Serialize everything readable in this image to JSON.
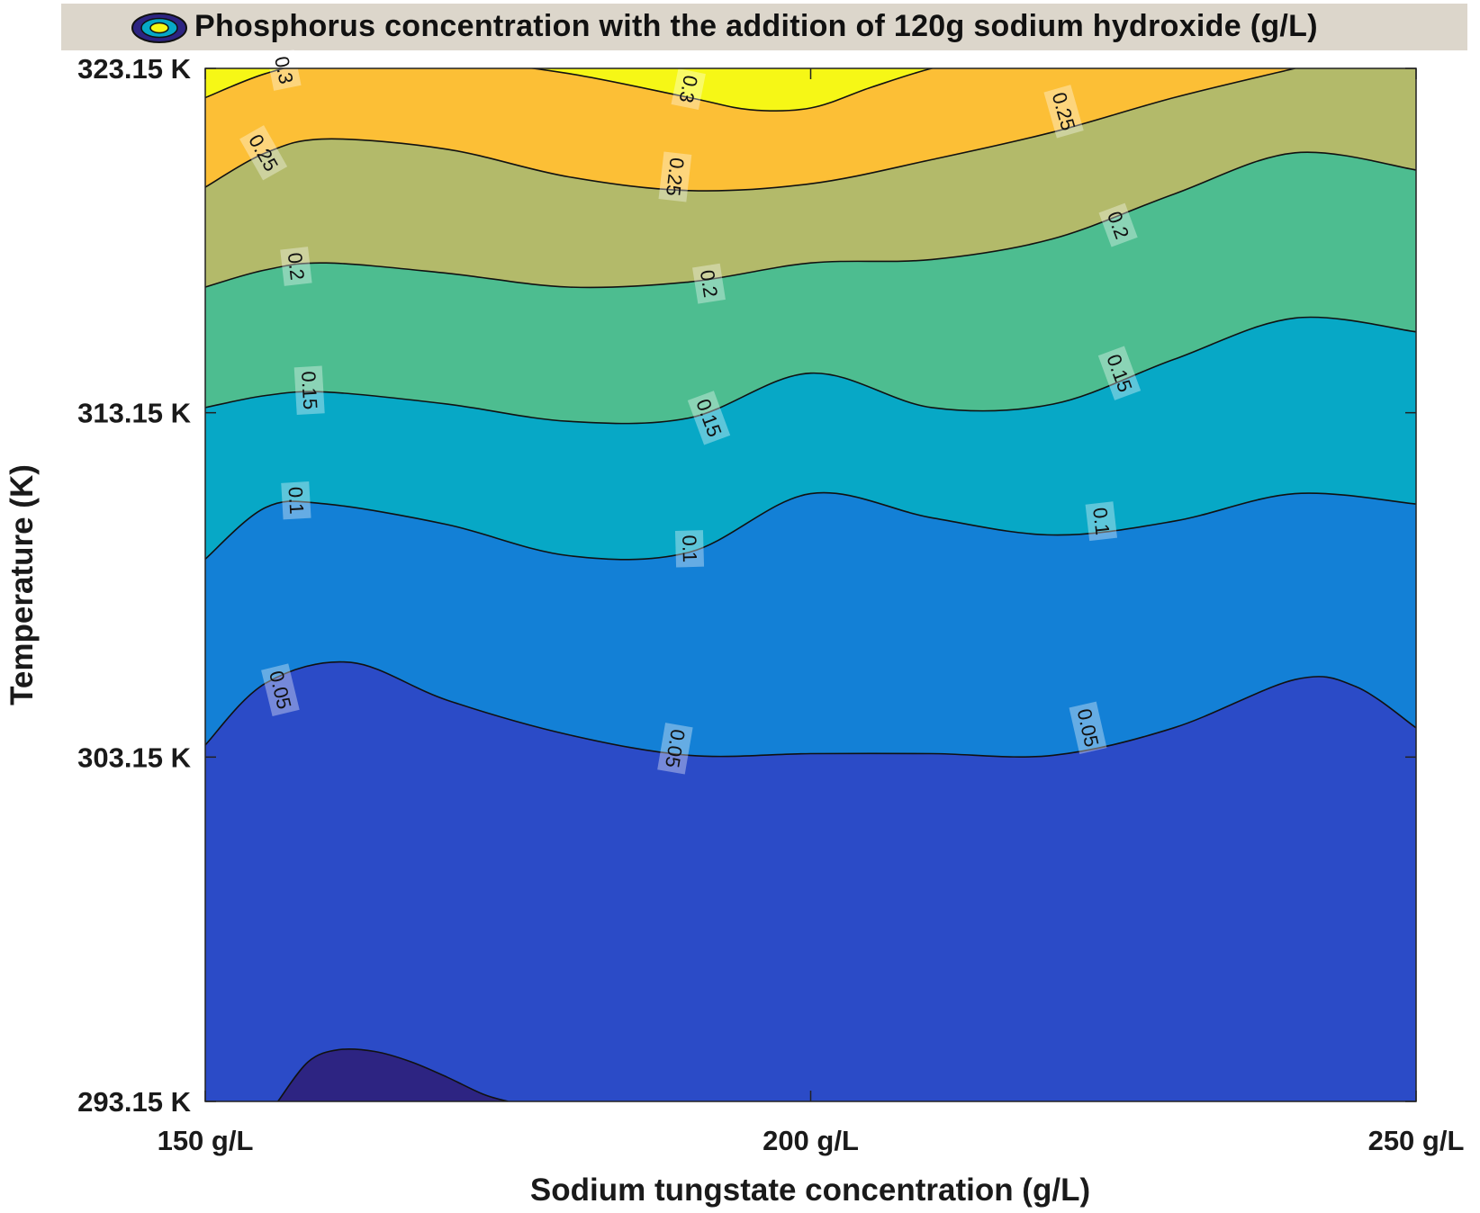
{
  "chart_data": {
    "type": "contour",
    "title": "Phosphorus concentration with the addition of 120g sodium hydroxide (g/L)",
    "xlabel": "Sodium tungstate concentration (g/L)",
    "ylabel": "Temperature (K)",
    "xlim": [
      150,
      250
    ],
    "ylim": [
      293.15,
      323.15
    ],
    "x_ticks": [
      {
        "value": 150,
        "label": "150 g/L"
      },
      {
        "value": 200,
        "label": "200 g/L"
      },
      {
        "value": 250,
        "label": "250 g/L"
      }
    ],
    "y_ticks": [
      {
        "value": 293.15,
        "label": "293.15 K"
      },
      {
        "value": 303.15,
        "label": "303.15 K"
      },
      {
        "value": 313.15,
        "label": "313.15 K"
      },
      {
        "value": 323.15,
        "label": "323.15 K"
      }
    ],
    "band_colors": [
      "#2d2482",
      "#2b4bc7",
      "#1380d6",
      "#07a8c6",
      "#4dbd90",
      "#b3ba6a",
      "#fcbf36",
      "#f6f716"
    ],
    "level_label_color": "#111111",
    "levels": [
      {
        "value": 0.05,
        "points": [
          [
            150,
            303.5
          ],
          [
            155,
            305.3
          ],
          [
            162,
            305.9
          ],
          [
            170,
            304.8
          ],
          [
            180,
            303.8
          ],
          [
            190,
            303.2
          ],
          [
            200,
            303.25
          ],
          [
            210,
            303.25
          ],
          [
            220,
            303.2
          ],
          [
            230,
            304.0
          ],
          [
            240,
            305.4
          ],
          [
            245,
            305.2
          ],
          [
            250,
            304.0
          ]
        ],
        "labels": [
          {
            "x": 156.2,
            "y": 305.1,
            "text": "0.05"
          },
          {
            "x": 188.8,
            "y": 303.4,
            "text": "0.05"
          },
          {
            "x": 222.9,
            "y": 304.0,
            "text": "0.05"
          }
        ]
      },
      {
        "value": 0.1,
        "points": [
          [
            150,
            308.9
          ],
          [
            155,
            310.4
          ],
          [
            160,
            310.5
          ],
          [
            170,
            309.9
          ],
          [
            180,
            309.0
          ],
          [
            190,
            309.1
          ],
          [
            200,
            310.8
          ],
          [
            210,
            310.1
          ],
          [
            220,
            309.6
          ],
          [
            230,
            310.0
          ],
          [
            240,
            310.8
          ],
          [
            250,
            310.5
          ]
        ],
        "labels": [
          {
            "x": 157.5,
            "y": 310.6,
            "text": "0.1"
          },
          {
            "x": 190.0,
            "y": 309.2,
            "text": "0.1"
          },
          {
            "x": 224.0,
            "y": 310.0,
            "text": "0.1"
          }
        ]
      },
      {
        "value": 0.15,
        "points": [
          [
            150,
            313.3
          ],
          [
            155,
            313.65
          ],
          [
            160,
            313.75
          ],
          [
            170,
            313.4
          ],
          [
            180,
            312.9
          ],
          [
            190,
            313.0
          ],
          [
            200,
            314.3
          ],
          [
            210,
            313.3
          ],
          [
            220,
            313.4
          ],
          [
            230,
            314.7
          ],
          [
            240,
            315.9
          ],
          [
            250,
            315.5
          ]
        ],
        "labels": [
          {
            "x": 158.6,
            "y": 313.8,
            "text": "0.15"
          },
          {
            "x": 191.6,
            "y": 313.0,
            "text": "0.15"
          },
          {
            "x": 225.5,
            "y": 314.3,
            "text": "0.15"
          }
        ]
      },
      {
        "value": 0.2,
        "points": [
          [
            150,
            316.8
          ],
          [
            155,
            317.3
          ],
          [
            160,
            317.5
          ],
          [
            170,
            317.2
          ],
          [
            180,
            316.8
          ],
          [
            190,
            316.95
          ],
          [
            200,
            317.5
          ],
          [
            210,
            317.6
          ],
          [
            220,
            318.2
          ],
          [
            230,
            319.5
          ],
          [
            240,
            320.7
          ],
          [
            250,
            320.2
          ]
        ],
        "labels": [
          {
            "x": 157.5,
            "y": 317.4,
            "text": "0.2"
          },
          {
            "x": 191.6,
            "y": 316.9,
            "text": "0.2"
          },
          {
            "x": 225.4,
            "y": 318.6,
            "text": "0.2"
          }
        ]
      },
      {
        "value": 0.25,
        "points": [
          [
            150,
            319.7
          ],
          [
            155,
            320.7
          ],
          [
            160,
            321.1
          ],
          [
            170,
            320.8
          ],
          [
            180,
            320.0
          ],
          [
            190,
            319.6
          ],
          [
            200,
            319.8
          ],
          [
            210,
            320.5
          ],
          [
            220,
            321.3
          ],
          [
            230,
            322.3
          ],
          [
            240,
            323.15
          ]
        ],
        "labels": [
          {
            "x": 154.8,
            "y": 320.7,
            "text": "0.25"
          },
          {
            "x": 188.8,
            "y": 320.0,
            "text": "0.25"
          },
          {
            "x": 220.9,
            "y": 321.9,
            "text": "0.25"
          }
        ]
      },
      {
        "value": 0.3,
        "points": [
          [
            150,
            322.3
          ],
          [
            155,
            323.0
          ],
          [
            160,
            323.35
          ],
          [
            170,
            323.4
          ],
          [
            180,
            323.0
          ],
          [
            190,
            322.3
          ],
          [
            195,
            321.95
          ],
          [
            200,
            322.0
          ],
          [
            205,
            322.6
          ],
          [
            210,
            323.15
          ],
          [
            215,
            323.5
          ]
        ],
        "labels": [
          {
            "x": 156.5,
            "y": 323.1,
            "text": "0.3"
          },
          {
            "x": 189.9,
            "y": 322.55,
            "text": "0.3"
          }
        ]
      }
    ],
    "minimum_region": {
      "points": [
        [
          156,
          293.15
        ],
        [
          158.5,
          294.3
        ],
        [
          161,
          294.65
        ],
        [
          164,
          294.6
        ],
        [
          167,
          294.3
        ],
        [
          170,
          293.85
        ],
        [
          173,
          293.35
        ],
        [
          175,
          293.15
        ]
      ]
    }
  }
}
